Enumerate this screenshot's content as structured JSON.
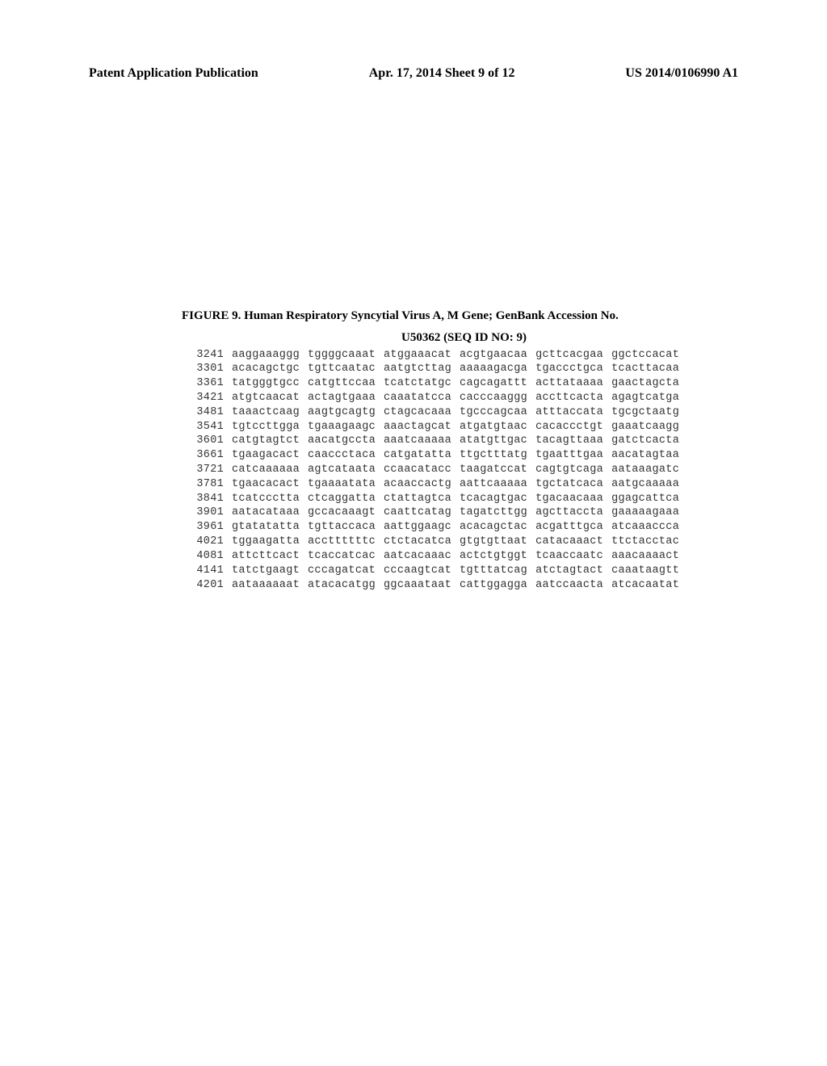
{
  "header": {
    "left": "Patent Application Publication",
    "center": "Apr. 17, 2014  Sheet 9 of 12",
    "right": "US 2014/0106990 A1"
  },
  "figure": {
    "title_line1": "FIGURE 9. Human Respiratory Syncytial Virus A, M Gene; GenBank Accession No.",
    "title_line2": "U50362 (SEQ ID NO: 9)"
  },
  "sequence": {
    "rows": [
      {
        "pos": "3241",
        "blocks": [
          "aaggaaaggg",
          "tggggcaaat",
          "atggaaacat",
          "acgtgaacaa",
          "gcttcacgaa",
          "ggctccacat"
        ]
      },
      {
        "pos": "3301",
        "blocks": [
          "acacagctgc",
          "tgttcaatac",
          "aatgtcttag",
          "aaaaagacga",
          "tgaccctgca",
          "tcacttacaa"
        ]
      },
      {
        "pos": "3361",
        "blocks": [
          "tatgggtgcc",
          "catgttccaa",
          "tcatctatgc",
          "cagcagattt",
          "acttataaaa",
          "gaactagcta"
        ]
      },
      {
        "pos": "3421",
        "blocks": [
          "atgtcaacat",
          "actagtgaaa",
          "caaatatcca",
          "cacccaaggg",
          "accttcacta",
          "agagtcatga"
        ]
      },
      {
        "pos": "3481",
        "blocks": [
          "taaactcaag",
          "aagtgcagtg",
          "ctagcacaaa",
          "tgcccagcaa",
          "atttaccata",
          "tgcgctaatg"
        ]
      },
      {
        "pos": "3541",
        "blocks": [
          "tgtccttgga",
          "tgaaagaagc",
          "aaactagcat",
          "atgatgtaac",
          "cacaccctgt",
          "gaaatcaagg"
        ]
      },
      {
        "pos": "3601",
        "blocks": [
          "catgtagtct",
          "aacatgccta",
          "aaatcaaaaa",
          "atatgttgac",
          "tacagttaaa",
          "gatctcacta"
        ]
      },
      {
        "pos": "3661",
        "blocks": [
          "tgaagacact",
          "caaccctaca",
          "catgatatta",
          "ttgctttatg",
          "tgaatttgaa",
          "aacatagtaa"
        ]
      },
      {
        "pos": "3721",
        "blocks": [
          "catcaaaaaa",
          "agtcataata",
          "ccaacatacc",
          "taagatccat",
          "cagtgtcaga",
          "aataaagatc"
        ]
      },
      {
        "pos": "3781",
        "blocks": [
          "tgaacacact",
          "tgaaaatata",
          "acaaccactg",
          "aattcaaaaa",
          "tgctatcaca",
          "aatgcaaaaa"
        ]
      },
      {
        "pos": "3841",
        "blocks": [
          "tcatccctta",
          "ctcaggatta",
          "ctattagtca",
          "tcacagtgac",
          "tgacaacaaa",
          "ggagcattca"
        ]
      },
      {
        "pos": "3901",
        "blocks": [
          "aatacataaa",
          "gccacaaagt",
          "caattcatag",
          "tagatcttgg",
          "agcttaccta",
          "gaaaaagaaa"
        ]
      },
      {
        "pos": "3961",
        "blocks": [
          "gtatatatta",
          "tgttaccaca",
          "aattggaagc",
          "acacagctac",
          "acgatttgca",
          "atcaaaccca"
        ]
      },
      {
        "pos": "4021",
        "blocks": [
          "tggaagatta",
          "accttttttc",
          "ctctacatca",
          "gtgtgttaat",
          "catacaaact",
          "ttctacctac"
        ]
      },
      {
        "pos": "4081",
        "blocks": [
          "attcttcact",
          "tcaccatcac",
          "aatcacaaac",
          "actctgtggt",
          "tcaaccaatc",
          "aaacaaaact"
        ]
      },
      {
        "pos": "4141",
        "blocks": [
          "tatctgaagt",
          "cccagatcat",
          "cccaagtcat",
          "tgtttatcag",
          "atctagtact",
          "caaataagtt"
        ]
      },
      {
        "pos": "4201",
        "blocks": [
          "aataaaaaat",
          "atacacatgg",
          "ggcaaataat",
          "cattggagga",
          "aatccaacta",
          "atcacaatat"
        ]
      }
    ]
  },
  "style": {
    "background_color": "#ffffff",
    "header_fontsize": 16,
    "title_fontsize": 15,
    "sequence_fontsize": 13.5,
    "sequence_color": "#333333",
    "header_color": "#000000"
  }
}
